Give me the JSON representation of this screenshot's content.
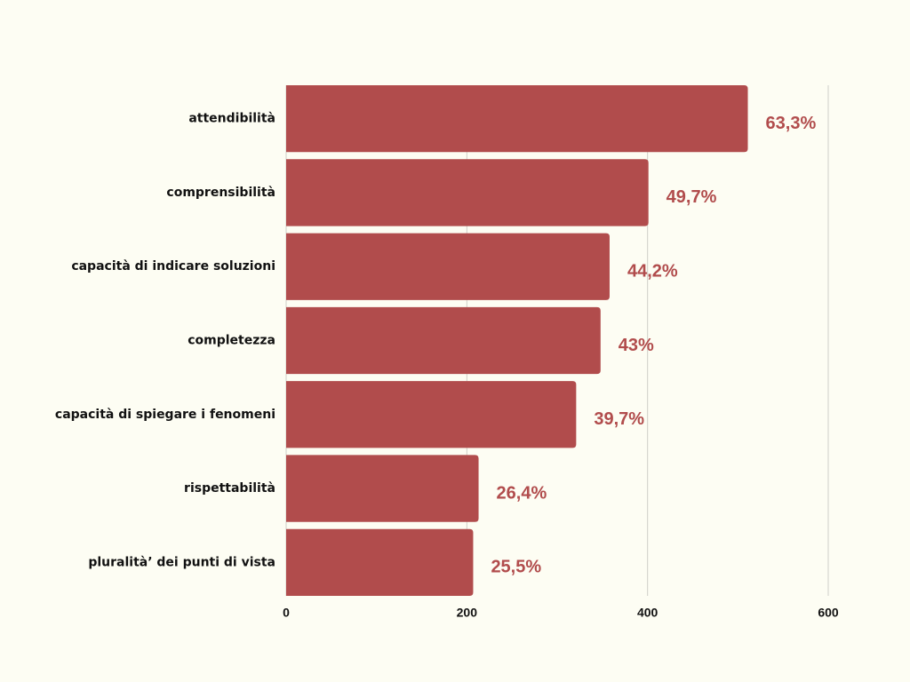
{
  "chart_data": {
    "type": "bar",
    "orientation": "horizontal",
    "categories": [
      "attendibilità",
      "comprensibilità",
      "capacità di indicare soluzioni",
      "completezza",
      "capacità di spiegare i fenomeni",
      "rispettabilità",
      "pluralità’ dei punti di vista"
    ],
    "values": [
      511,
      401,
      358,
      348,
      321,
      213,
      207
    ],
    "annotations": [
      "63,3%",
      "49,7%",
      "44,2%",
      "43%",
      "39,7%",
      "26,4%",
      "25,5%"
    ],
    "color": "#b14c4c",
    "xlim": [
      0,
      600
    ],
    "xticks": [
      0,
      200,
      400,
      600
    ],
    "grid": true
  }
}
